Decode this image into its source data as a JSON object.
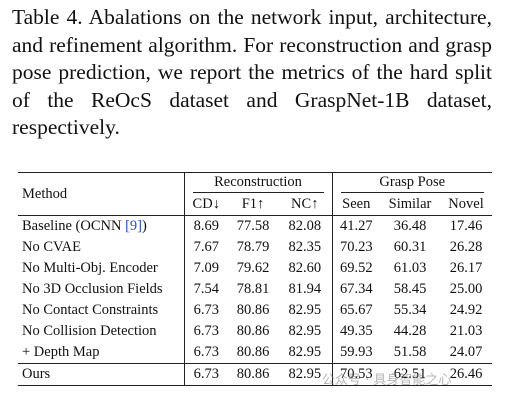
{
  "caption": {
    "label": "Table 4.",
    "text": "Abalations on the network input, architecture, and refinement algorithm. For reconstruction and grasp pose prediction, we report the metrics of the hard split of the ReOcS dataset and GraspNet-1B dataset, respectively."
  },
  "table": {
    "method_header": "Method",
    "group_headers": [
      "Reconstruction",
      "Grasp Pose"
    ],
    "columns": [
      "CD↓",
      "F1↑",
      "NC↑",
      "Seen",
      "Similar",
      "Novel"
    ],
    "rows": [
      {
        "method": "Baseline (OCNN ",
        "cite": "[9]",
        "suffix": ")",
        "values": [
          8.69,
          77.58,
          82.08,
          41.27,
          36.48,
          17.46
        ]
      },
      {
        "method": "No CVAE",
        "values": [
          7.67,
          78.79,
          82.35,
          70.23,
          60.31,
          26.28
        ]
      },
      {
        "method": "No Multi-Obj. Encoder",
        "values": [
          7.09,
          79.62,
          82.6,
          69.52,
          61.03,
          26.17
        ]
      },
      {
        "method": "No 3D Occlusion Fields",
        "values": [
          7.54,
          78.81,
          81.94,
          67.34,
          58.45,
          25.0
        ]
      },
      {
        "method": "No Contact Constraints",
        "values": [
          6.73,
          80.86,
          82.95,
          65.67,
          55.34,
          24.92
        ]
      },
      {
        "method": "No Collision Detection",
        "values": [
          6.73,
          80.86,
          82.95,
          49.35,
          44.28,
          21.03
        ]
      },
      {
        "method": "+ Depth Map",
        "values": [
          6.73,
          80.86,
          82.95,
          59.93,
          51.58,
          24.07
        ]
      },
      {
        "method": "Ours",
        "values": [
          6.73,
          80.86,
          82.95,
          70.53,
          62.51,
          26.46
        ]
      }
    ]
  },
  "watermark": "公众号 · 具身智能之心"
}
